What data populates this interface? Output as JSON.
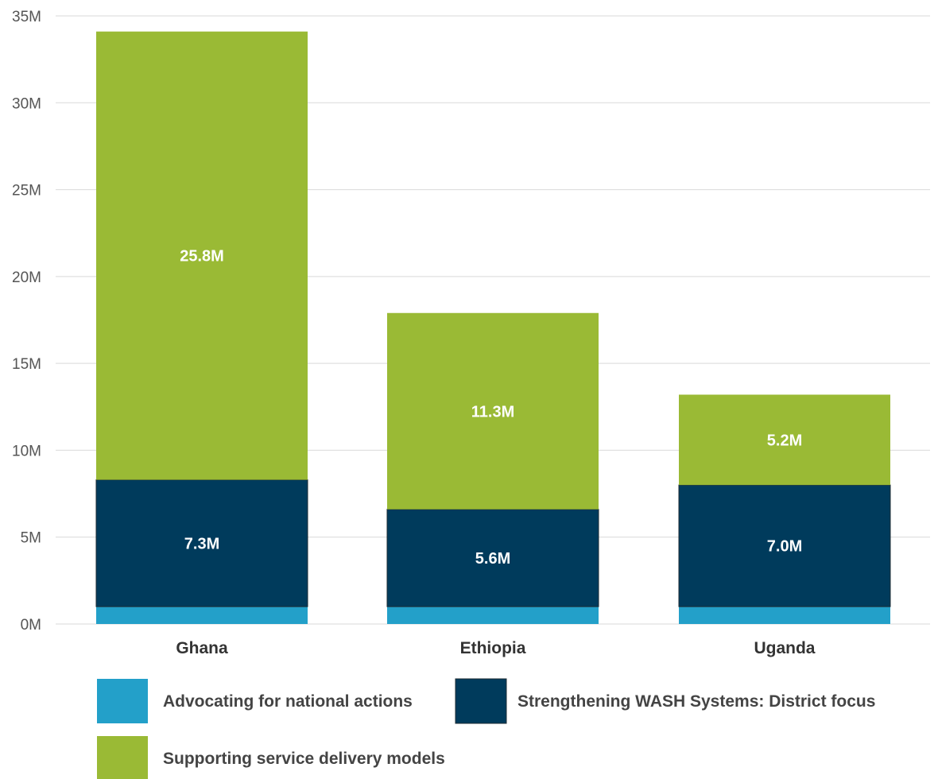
{
  "chart_data": {
    "type": "bar",
    "stacked": true,
    "categories": [
      "Ghana",
      "Ethiopia",
      "Uganda"
    ],
    "series": [
      {
        "name": "Advocating for national actions",
        "color": "#23a0c9",
        "values": [
          1.0,
          1.0,
          1.0
        ],
        "labels": [
          "",
          "",
          ""
        ]
      },
      {
        "name": "Strengthening WASH Systems: District focus",
        "color": "#003b5c",
        "values": [
          7.3,
          5.6,
          7.0
        ],
        "labels": [
          "7.3M",
          "5.6M",
          "7.0M"
        ]
      },
      {
        "name": "Supporting service delivery models",
        "color": "#9aba35",
        "values": [
          25.8,
          11.3,
          5.2
        ],
        "labels": [
          "25.8M",
          "11.3M",
          "5.2M"
        ]
      }
    ],
    "yticks": [
      0,
      5,
      10,
      15,
      20,
      25,
      30,
      35
    ],
    "ytick_labels": [
      "0M",
      "5M",
      "10M",
      "15M",
      "20M",
      "25M",
      "30M",
      "35M"
    ],
    "ylim": [
      0,
      35
    ],
    "grid": true,
    "legend_position": "bottom",
    "title": "",
    "xlabel": "",
    "ylabel": ""
  }
}
